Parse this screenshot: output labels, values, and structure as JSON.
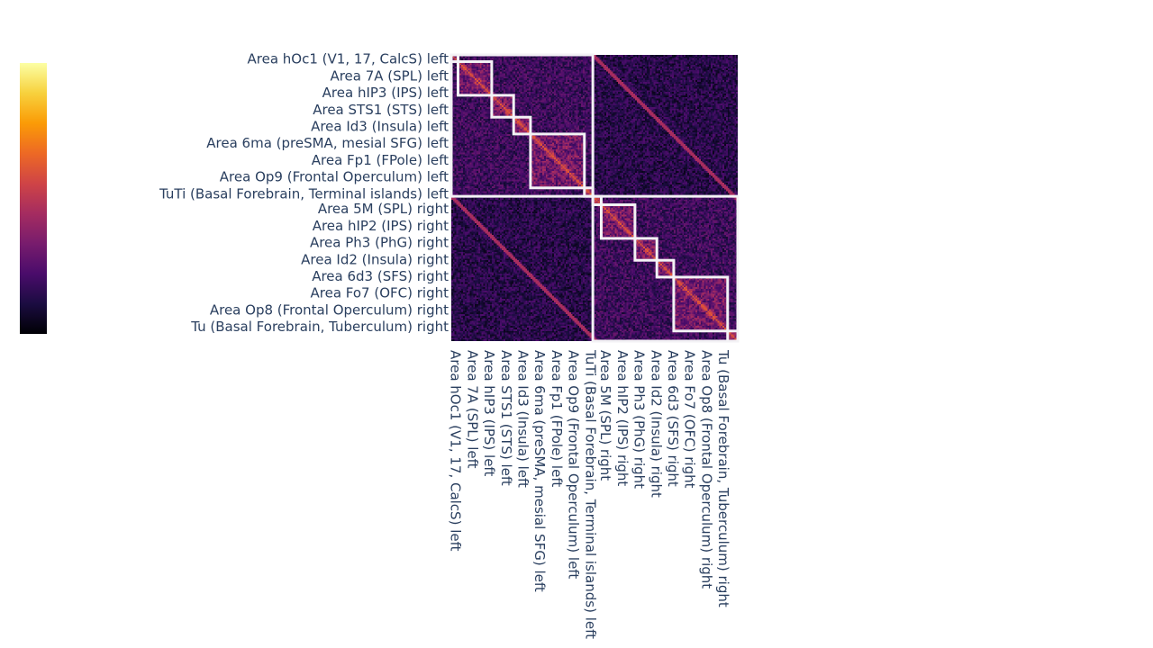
{
  "chart_data": {
    "type": "heatmap",
    "title": "",
    "xlabel": "",
    "ylabel": "",
    "colorscale": [
      "#000004",
      "#1b0c41",
      "#4a0c6b",
      "#781c6d",
      "#a52c60",
      "#cf4446",
      "#ed6925",
      "#fb9b06",
      "#f7d13d",
      "#fcffa4"
    ],
    "zrange": [
      0,
      1
    ],
    "colorbar": {
      "ticks_shown": false
    },
    "tick_labels": [
      "Area hOc1 (V1, 17, CalcS) left",
      "Area 7A (SPL) left",
      "Area hIP3 (IPS) left",
      "Area STS1 (STS) left",
      "Area Id3 (Insula) left",
      "Area 6ma (preSMA, mesial SFG) left",
      "Area Fp1 (FPole) left",
      "Area Op9 (Frontal Operculum) left",
      "TuTi (Basal Forebrain, Terminal islands) left",
      "Area 5M (SPL) right",
      "Area hIP2 (IPS) right",
      "Area Ph3 (PhG) right",
      "Area Id2 (Insula) right",
      "Area 6d3 (SFS) right",
      "Area Fo7 (OFC) right",
      "Area Op8 (Frontal Operculum) right",
      "Tu (Basal Forebrain, Tuberculum) right"
    ],
    "n_cells": 170,
    "tick_positions": [
      2,
      12,
      22,
      32,
      42,
      52,
      62,
      72,
      82,
      91,
      101,
      111,
      121,
      131,
      141,
      151,
      161
    ],
    "hemisphere_boxes": [
      {
        "start": 0,
        "end": 84,
        "label": "left"
      },
      {
        "start": 84,
        "end": 170,
        "label": "right"
      }
    ],
    "cluster_boxes": [
      {
        "start": 0,
        "end": 4
      },
      {
        "start": 4,
        "end": 24
      },
      {
        "start": 24,
        "end": 37
      },
      {
        "start": 37,
        "end": 47
      },
      {
        "start": 47,
        "end": 79
      },
      {
        "start": 79,
        "end": 84
      },
      {
        "start": 84,
        "end": 89
      },
      {
        "start": 89,
        "end": 109
      },
      {
        "start": 109,
        "end": 122
      },
      {
        "start": 122,
        "end": 132
      },
      {
        "start": 132,
        "end": 164
      },
      {
        "start": 164,
        "end": 170
      }
    ]
  }
}
